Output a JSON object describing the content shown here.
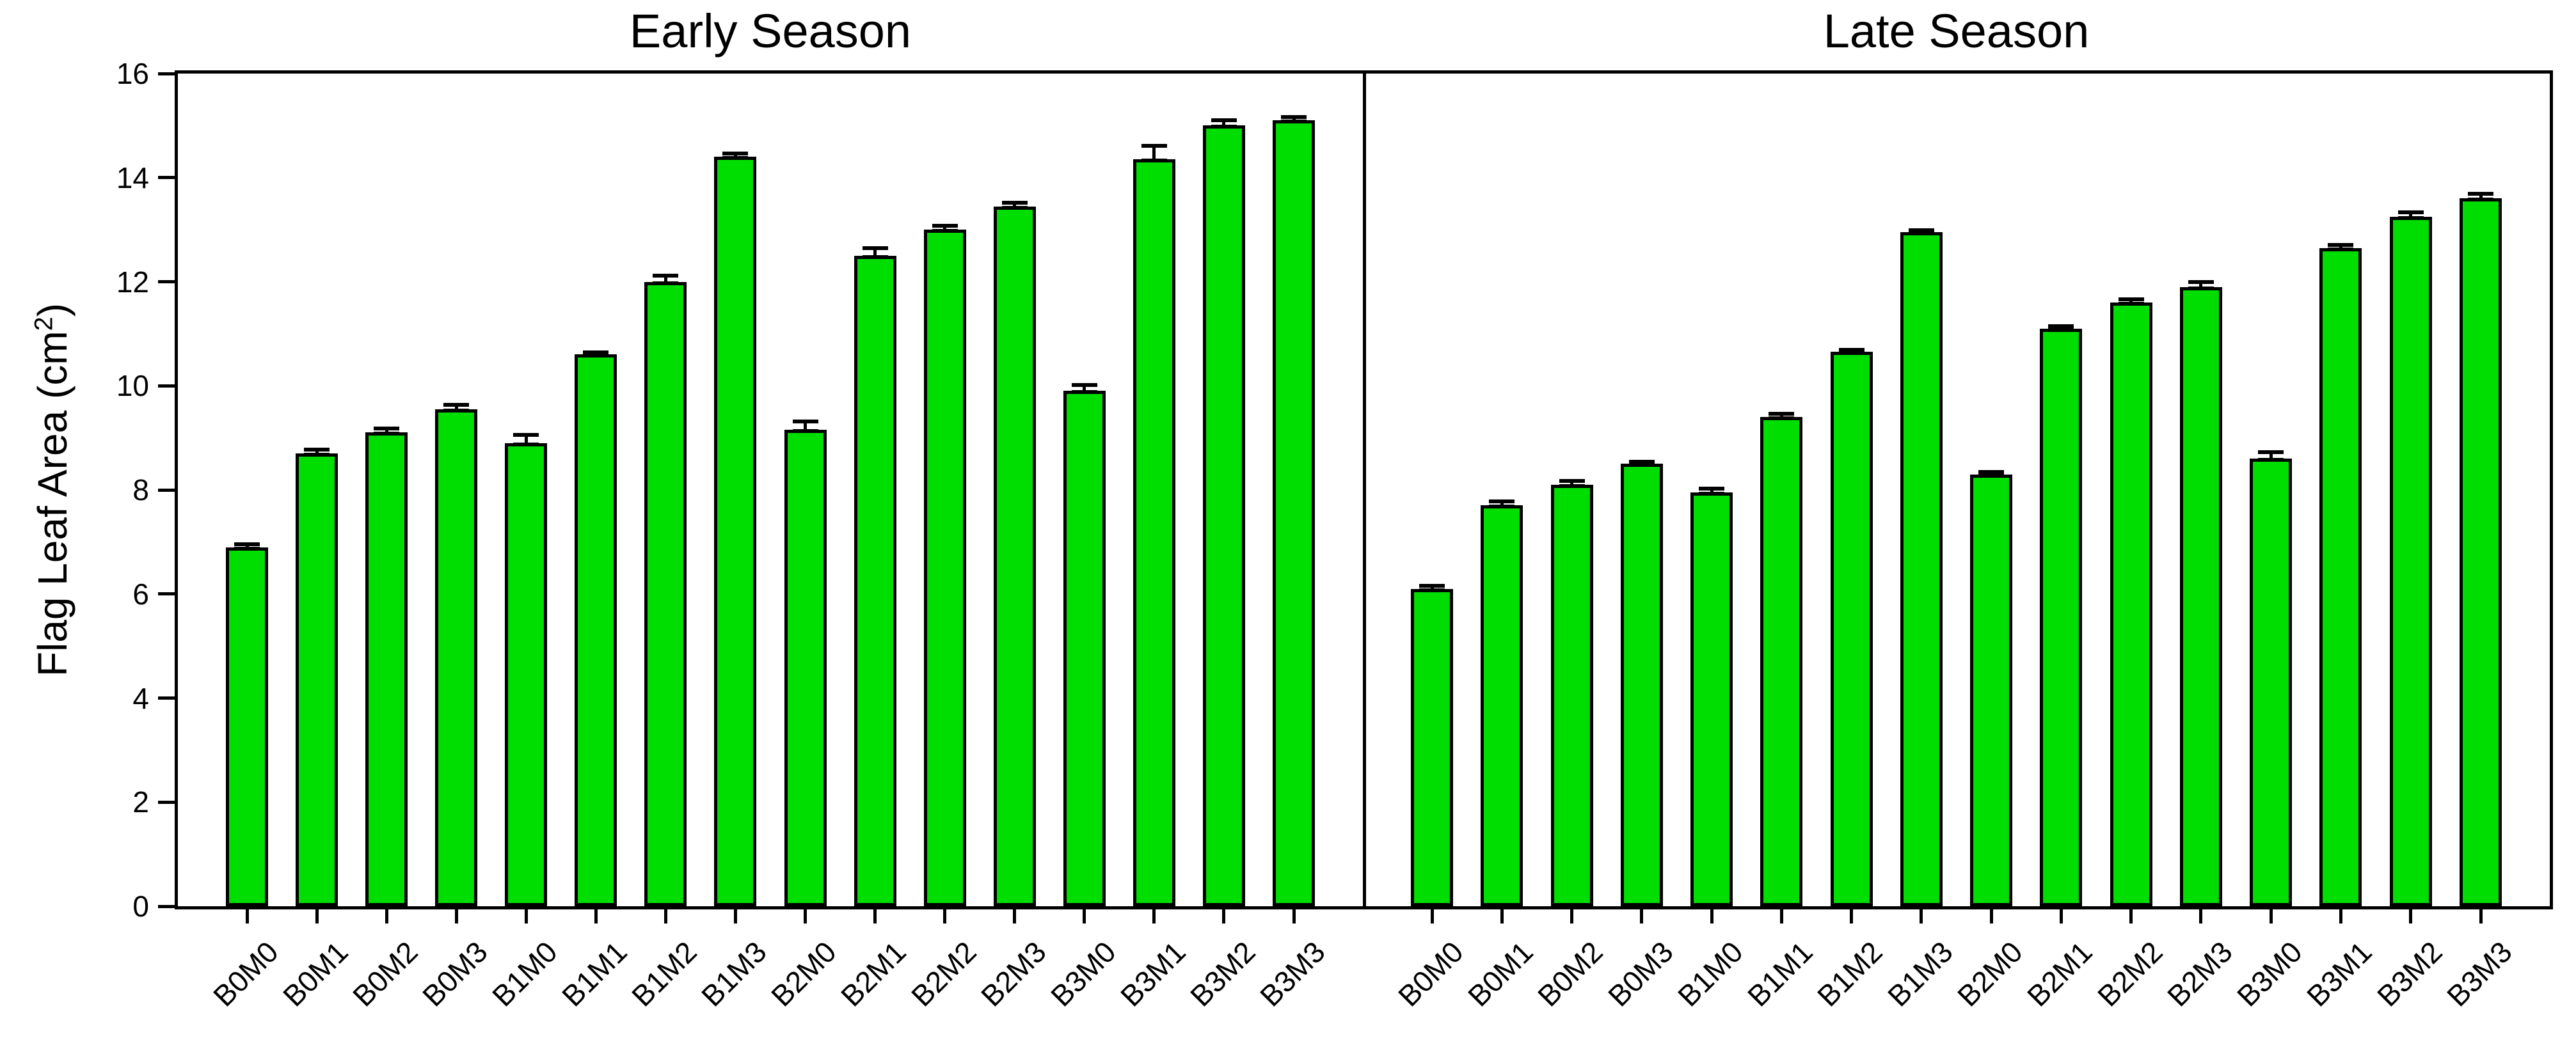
{
  "chart_data": {
    "type": "bar",
    "title": "",
    "ylabel": {
      "pre": "Flag Leaf Area (cm",
      "sup": "2",
      "post": ")"
    },
    "xlabel": "",
    "ylim": [
      0,
      16
    ],
    "yticks": [
      0,
      2,
      4,
      6,
      8,
      10,
      12,
      14,
      16
    ],
    "grid": false,
    "bar_color": "#00DD00",
    "bar_edge_color": "#000000",
    "error_bar_color": "#000000",
    "categories": [
      "B0M0",
      "B0M1",
      "B0M2",
      "B0M3",
      "B1M0",
      "B1M1",
      "B1M2",
      "B1M3",
      "B2M0",
      "B2M1",
      "B2M2",
      "B2M3",
      "B3M0",
      "B3M1",
      "B3M2",
      "B3M3"
    ],
    "panels": [
      {
        "title": "Early Season",
        "values": [
          6.9,
          8.7,
          9.1,
          9.55,
          8.9,
          10.6,
          12.0,
          14.4,
          9.15,
          12.5,
          13.0,
          13.45,
          9.9,
          14.35,
          15.0,
          15.1
        ],
        "errors": [
          0.06,
          0.08,
          0.08,
          0.08,
          0.16,
          0.04,
          0.12,
          0.07,
          0.17,
          0.15,
          0.07,
          0.07,
          0.11,
          0.26,
          0.1,
          0.07
        ]
      },
      {
        "title": "Late Season",
        "values": [
          6.1,
          7.7,
          8.1,
          8.5,
          7.95,
          9.4,
          10.65,
          12.95,
          8.3,
          11.1,
          11.6,
          11.9,
          8.6,
          12.65,
          13.25,
          13.6
        ],
        "errors": [
          0.06,
          0.08,
          0.07,
          0.04,
          0.08,
          0.06,
          0.04,
          0.04,
          0.04,
          0.05,
          0.06,
          0.1,
          0.13,
          0.06,
          0.08,
          0.09
        ]
      }
    ]
  }
}
